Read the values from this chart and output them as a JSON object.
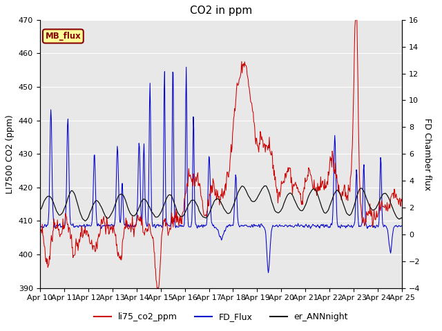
{
  "title": "CO2 in ppm",
  "ylabel_left": "LI7500 CO2 (ppm)",
  "ylabel_right": "FD Chamber flux",
  "ylim_left": [
    390,
    470
  ],
  "ylim_right": [
    -4,
    16
  ],
  "yticks_left": [
    390,
    400,
    410,
    420,
    430,
    440,
    450,
    460,
    470
  ],
  "yticks_right": [
    -4,
    -2,
    0,
    2,
    4,
    6,
    8,
    10,
    12,
    14,
    16
  ],
  "xticklabels": [
    "Apr 10",
    "Apr 11",
    "Apr 12",
    "Apr 13",
    "Apr 14",
    "Apr 15",
    "Apr 16",
    "Apr 17",
    "Apr 18",
    "Apr 19",
    "Apr 20",
    "Apr 21",
    "Apr 22",
    "Apr 23",
    "Apr 24",
    "Apr 25"
  ],
  "line_red_color": "#cc0000",
  "line_blue_color": "#0000cc",
  "line_black_color": "#111111",
  "legend_labels": [
    "li75_co2_ppm",
    "FD_Flux",
    "er_ANNnight"
  ],
  "annotation_text": "MB_flux",
  "annotation_facecolor": "#ffff99",
  "annotation_edgecolor": "#880000",
  "background_color": "#e8e8e8",
  "title_fontsize": 11,
  "axis_label_fontsize": 9,
  "tick_fontsize": 8
}
